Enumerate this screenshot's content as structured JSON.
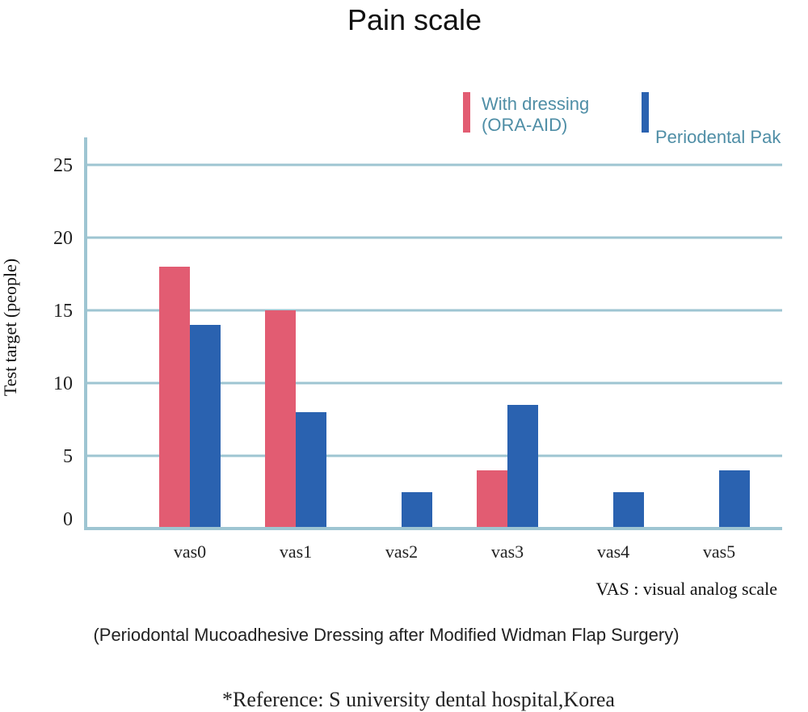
{
  "chart_data": {
    "type": "bar",
    "title": "Pain scale",
    "ylabel": "Test target (people)",
    "xlabel_note": "VAS : visual analog scale",
    "subtitle": "(Periodontal Mucoadhesive Dressing after Modified Widman Flap Surgery)",
    "reference": "*Reference: S university dental hospital,Korea",
    "categories": [
      "vas0",
      "vas1",
      "vas2",
      "vas3",
      "vas4",
      "vas5"
    ],
    "series": [
      {
        "name": "With dressing\n(ORA-AID)",
        "color": "#e25c72",
        "values": [
          18,
          15,
          0,
          4,
          0,
          0
        ]
      },
      {
        "name": "Periodental Pak",
        "color": "#2a62b0",
        "values": [
          14,
          8,
          2.5,
          8.5,
          2.5,
          4
        ]
      }
    ],
    "ylim": [
      0,
      27
    ],
    "yticks": [
      0,
      5,
      10,
      15,
      20,
      25
    ],
    "grid": true,
    "gridColor": "#9ec5d2",
    "legend_position": "top-right",
    "legend_text_color": "#4f8ea6"
  }
}
